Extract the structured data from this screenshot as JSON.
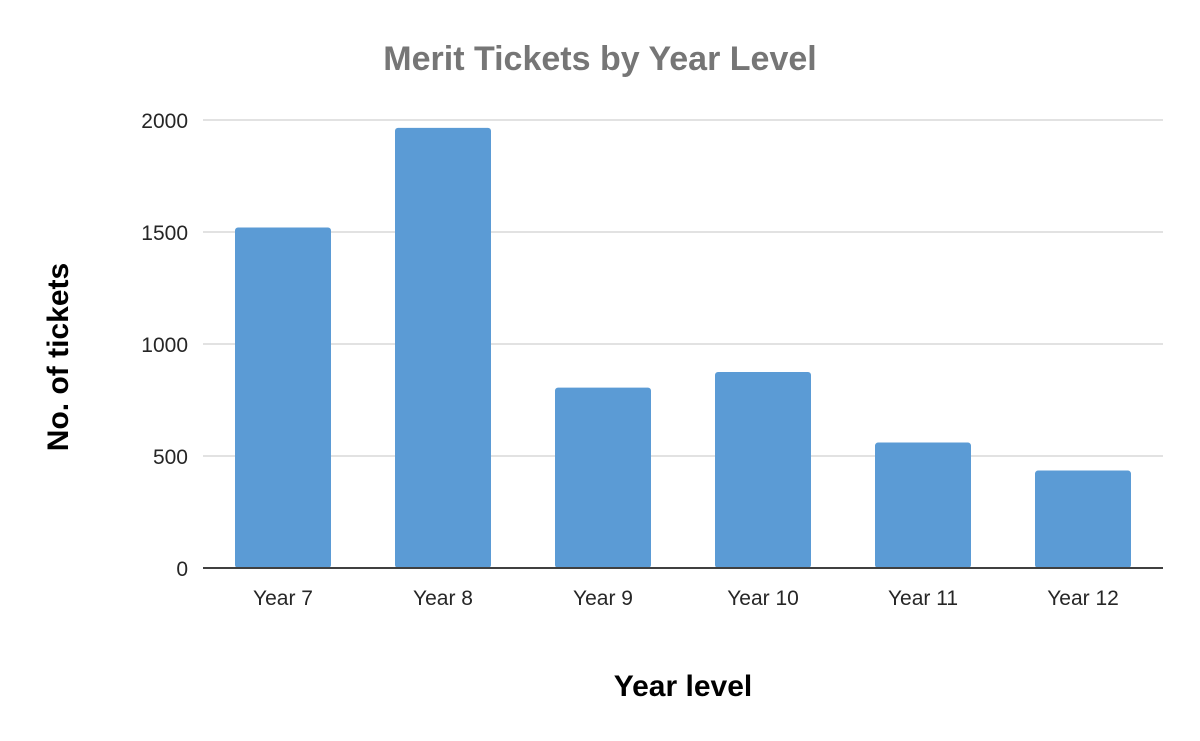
{
  "chart_data": {
    "type": "bar",
    "title": "Merit Tickets by Year Level",
    "xlabel": "Year level",
    "ylabel": "No. of tickets",
    "categories": [
      "Year 7",
      "Year 8",
      "Year 9",
      "Year 10",
      "Year 11",
      "Year 12"
    ],
    "values": [
      1520,
      1965,
      805,
      875,
      560,
      435
    ],
    "ylim": [
      0,
      2000
    ],
    "yticks": [
      "0",
      "500",
      "1000",
      "1500",
      "2000"
    ],
    "grid": true,
    "legend": "none",
    "bar_color": "#5b9bd5"
  }
}
